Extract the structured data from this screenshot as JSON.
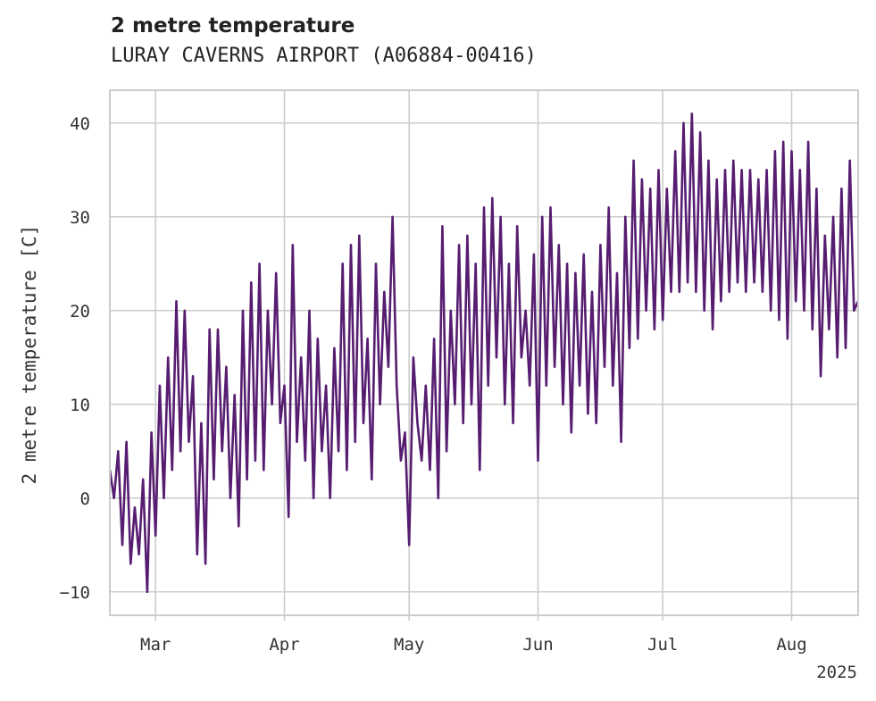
{
  "chart_data": {
    "type": "line",
    "title": "2 metre temperature",
    "subtitle": "LURAY CAVERNS AIRPORT (A06884-00416)",
    "ylabel": "2 metre temperature [C]",
    "xlabel": "",
    "year_label": "2025",
    "x_range": [
      "2025-02-18",
      "2025-08-17"
    ],
    "ylim": [
      -12.5,
      43.5
    ],
    "grid": true,
    "color": "#561d70",
    "x_ticks": [
      {
        "date": "2025-03-01",
        "label": "Mar"
      },
      {
        "date": "2025-04-01",
        "label": "Apr"
      },
      {
        "date": "2025-05-01",
        "label": "May"
      },
      {
        "date": "2025-06-01",
        "label": "Jun"
      },
      {
        "date": "2025-07-01",
        "label": "Jul"
      },
      {
        "date": "2025-08-01",
        "label": "Aug"
      }
    ],
    "y_ticks": [
      -10,
      0,
      10,
      20,
      30,
      40
    ],
    "series": [
      {
        "values": [
          [
            "2025-02-18",
            3
          ],
          [
            "2025-02-19",
            0
          ],
          [
            "2025-02-20",
            5
          ],
          [
            "2025-02-21",
            -5
          ],
          [
            "2025-02-22",
            6
          ],
          [
            "2025-02-23",
            -7
          ],
          [
            "2025-02-24",
            -1
          ],
          [
            "2025-02-25",
            -6
          ],
          [
            "2025-02-26",
            2
          ],
          [
            "2025-02-27",
            -10
          ],
          [
            "2025-02-28",
            7
          ],
          [
            "2025-03-01",
            -4
          ],
          [
            "2025-03-02",
            12
          ],
          [
            "2025-03-03",
            0
          ],
          [
            "2025-03-04",
            15
          ],
          [
            "2025-03-05",
            3
          ],
          [
            "2025-03-06",
            21
          ],
          [
            "2025-03-07",
            5
          ],
          [
            "2025-03-08",
            20
          ],
          [
            "2025-03-09",
            6
          ],
          [
            "2025-03-10",
            13
          ],
          [
            "2025-03-11",
            -6
          ],
          [
            "2025-03-12",
            8
          ],
          [
            "2025-03-13",
            -7
          ],
          [
            "2025-03-14",
            18
          ],
          [
            "2025-03-15",
            2
          ],
          [
            "2025-03-16",
            18
          ],
          [
            "2025-03-17",
            5
          ],
          [
            "2025-03-18",
            14
          ],
          [
            "2025-03-19",
            0
          ],
          [
            "2025-03-20",
            11
          ],
          [
            "2025-03-21",
            -3
          ],
          [
            "2025-03-22",
            20
          ],
          [
            "2025-03-23",
            2
          ],
          [
            "2025-03-24",
            23
          ],
          [
            "2025-03-25",
            4
          ],
          [
            "2025-03-26",
            25
          ],
          [
            "2025-03-27",
            3
          ],
          [
            "2025-03-28",
            20
          ],
          [
            "2025-03-29",
            10
          ],
          [
            "2025-03-30",
            24
          ],
          [
            "2025-03-31",
            8
          ],
          [
            "2025-04-01",
            12
          ],
          [
            "2025-04-02",
            -2
          ],
          [
            "2025-04-03",
            27
          ],
          [
            "2025-04-04",
            6
          ],
          [
            "2025-04-05",
            15
          ],
          [
            "2025-04-06",
            4
          ],
          [
            "2025-04-07",
            20
          ],
          [
            "2025-04-08",
            0
          ],
          [
            "2025-04-09",
            17
          ],
          [
            "2025-04-10",
            5
          ],
          [
            "2025-04-11",
            12
          ],
          [
            "2025-04-12",
            0
          ],
          [
            "2025-04-13",
            16
          ],
          [
            "2025-04-14",
            5
          ],
          [
            "2025-04-15",
            25
          ],
          [
            "2025-04-16",
            3
          ],
          [
            "2025-04-17",
            27
          ],
          [
            "2025-04-18",
            6
          ],
          [
            "2025-04-19",
            28
          ],
          [
            "2025-04-20",
            8
          ],
          [
            "2025-04-21",
            17
          ],
          [
            "2025-04-22",
            2
          ],
          [
            "2025-04-23",
            25
          ],
          [
            "2025-04-24",
            10
          ],
          [
            "2025-04-25",
            22
          ],
          [
            "2025-04-26",
            14
          ],
          [
            "2025-04-27",
            30
          ],
          [
            "2025-04-28",
            12
          ],
          [
            "2025-04-29",
            4
          ],
          [
            "2025-04-30",
            7
          ],
          [
            "2025-05-01",
            -5
          ],
          [
            "2025-05-02",
            15
          ],
          [
            "2025-05-03",
            8
          ],
          [
            "2025-05-04",
            4
          ],
          [
            "2025-05-05",
            12
          ],
          [
            "2025-05-06",
            3
          ],
          [
            "2025-05-07",
            17
          ],
          [
            "2025-05-08",
            0
          ],
          [
            "2025-05-09",
            29
          ],
          [
            "2025-05-10",
            5
          ],
          [
            "2025-05-11",
            20
          ],
          [
            "2025-05-12",
            10
          ],
          [
            "2025-05-13",
            27
          ],
          [
            "2025-05-14",
            8
          ],
          [
            "2025-05-15",
            28
          ],
          [
            "2025-05-16",
            10
          ],
          [
            "2025-05-17",
            25
          ],
          [
            "2025-05-18",
            3
          ],
          [
            "2025-05-19",
            31
          ],
          [
            "2025-05-20",
            12
          ],
          [
            "2025-05-21",
            32
          ],
          [
            "2025-05-22",
            15
          ],
          [
            "2025-05-23",
            30
          ],
          [
            "2025-05-24",
            10
          ],
          [
            "2025-05-25",
            25
          ],
          [
            "2025-05-26",
            8
          ],
          [
            "2025-05-27",
            29
          ],
          [
            "2025-05-28",
            15
          ],
          [
            "2025-05-29",
            20
          ],
          [
            "2025-05-30",
            12
          ],
          [
            "2025-05-31",
            26
          ],
          [
            "2025-06-01",
            4
          ],
          [
            "2025-06-02",
            30
          ],
          [
            "2025-06-03",
            12
          ],
          [
            "2025-06-04",
            31
          ],
          [
            "2025-06-05",
            14
          ],
          [
            "2025-06-06",
            27
          ],
          [
            "2025-06-07",
            10
          ],
          [
            "2025-06-08",
            25
          ],
          [
            "2025-06-09",
            7
          ],
          [
            "2025-06-10",
            24
          ],
          [
            "2025-06-11",
            12
          ],
          [
            "2025-06-12",
            26
          ],
          [
            "2025-06-13",
            9
          ],
          [
            "2025-06-14",
            22
          ],
          [
            "2025-06-15",
            8
          ],
          [
            "2025-06-16",
            27
          ],
          [
            "2025-06-17",
            14
          ],
          [
            "2025-06-18",
            31
          ],
          [
            "2025-06-19",
            12
          ],
          [
            "2025-06-20",
            24
          ],
          [
            "2025-06-21",
            6
          ],
          [
            "2025-06-22",
            30
          ],
          [
            "2025-06-23",
            16
          ],
          [
            "2025-06-24",
            36
          ],
          [
            "2025-06-25",
            17
          ],
          [
            "2025-06-26",
            34
          ],
          [
            "2025-06-27",
            20
          ],
          [
            "2025-06-28",
            33
          ],
          [
            "2025-06-29",
            18
          ],
          [
            "2025-06-30",
            35
          ],
          [
            "2025-07-01",
            19
          ],
          [
            "2025-07-02",
            33
          ],
          [
            "2025-07-03",
            22
          ],
          [
            "2025-07-04",
            37
          ],
          [
            "2025-07-05",
            22
          ],
          [
            "2025-07-06",
            40
          ],
          [
            "2025-07-07",
            23
          ],
          [
            "2025-07-08",
            41
          ],
          [
            "2025-07-09",
            22
          ],
          [
            "2025-07-10",
            39
          ],
          [
            "2025-07-11",
            20
          ],
          [
            "2025-07-12",
            36
          ],
          [
            "2025-07-13",
            18
          ],
          [
            "2025-07-14",
            34
          ],
          [
            "2025-07-15",
            21
          ],
          [
            "2025-07-16",
            35
          ],
          [
            "2025-07-17",
            22
          ],
          [
            "2025-07-18",
            36
          ],
          [
            "2025-07-19",
            23
          ],
          [
            "2025-07-20",
            35
          ],
          [
            "2025-07-21",
            22
          ],
          [
            "2025-07-22",
            35
          ],
          [
            "2025-07-23",
            23
          ],
          [
            "2025-07-24",
            34
          ],
          [
            "2025-07-25",
            22
          ],
          [
            "2025-07-26",
            35
          ],
          [
            "2025-07-27",
            20
          ],
          [
            "2025-07-28",
            37
          ],
          [
            "2025-07-29",
            19
          ],
          [
            "2025-07-30",
            38
          ],
          [
            "2025-07-31",
            17
          ],
          [
            "2025-08-01",
            37
          ],
          [
            "2025-08-02",
            21
          ],
          [
            "2025-08-03",
            35
          ],
          [
            "2025-08-04",
            20
          ],
          [
            "2025-08-05",
            38
          ],
          [
            "2025-08-06",
            18
          ],
          [
            "2025-08-07",
            33
          ],
          [
            "2025-08-08",
            13
          ],
          [
            "2025-08-09",
            28
          ],
          [
            "2025-08-10",
            18
          ],
          [
            "2025-08-11",
            30
          ],
          [
            "2025-08-12",
            15
          ],
          [
            "2025-08-13",
            33
          ],
          [
            "2025-08-14",
            16
          ],
          [
            "2025-08-15",
            36
          ],
          [
            "2025-08-16",
            20
          ],
          [
            "2025-08-17",
            21
          ]
        ]
      }
    ]
  }
}
